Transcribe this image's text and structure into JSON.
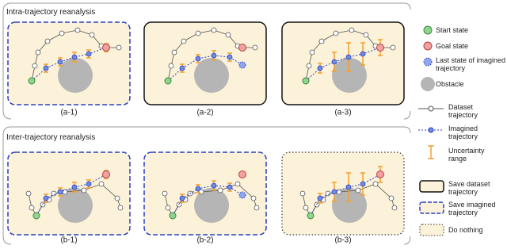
{
  "sections": [
    {
      "title": "Intra-trajectory reanalysis",
      "panels": [
        "(a-1)",
        "(a-2)",
        "(a-3)"
      ]
    },
    {
      "title": "Inter-trajectory reanalysis",
      "panels": [
        "(b-1)",
        "(b-2)",
        "(b-3)"
      ]
    }
  ],
  "legend": [
    "Start state",
    "Goal state",
    "Last state of imagined trajectory",
    "Obstacle",
    "Dataset trajectory",
    "Imagined trajectory",
    "Uncertainty range",
    "Save dataset trajectory",
    "Save imagined trajectory",
    "Do nothing"
  ]
}
